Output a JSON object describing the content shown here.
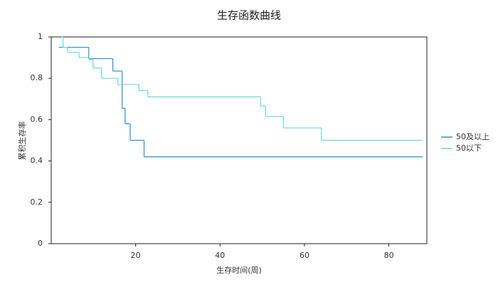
{
  "chart_data": {
    "type": "step",
    "title": "生存函数曲线",
    "xlabel": "生存时间(周)",
    "ylabel": "累积生存率",
    "xlim": [
      0,
      89
    ],
    "ylim": [
      0,
      1
    ],
    "xticks": [
      20,
      40,
      60,
      80
    ],
    "yticks": [
      0,
      0.2,
      0.4,
      0.6,
      0.8,
      1
    ],
    "legend": "right",
    "series": [
      {
        "name": "50及以上",
        "color": "#2a8fd0",
        "x": [
          1.8,
          8.9,
          14.6,
          16.8,
          17.5,
          18.7,
          22,
          88
        ],
        "values": [
          0.95,
          0.895,
          0.835,
          0.655,
          0.58,
          0.5,
          0.42,
          0.42
        ]
      },
      {
        "name": "50以下",
        "color": "#66dbd8",
        "x": [
          2.5,
          2.8,
          3.9,
          6.6,
          9,
          9.9,
          11.9,
          15.8,
          20.8,
          22.9,
          49.6,
          50.8,
          55,
          64,
          88
        ],
        "values": [
          1,
          0.95,
          0.925,
          0.9,
          0.89,
          0.85,
          0.8,
          0.77,
          0.74,
          0.71,
          0.665,
          0.615,
          0.56,
          0.5,
          0.5
        ]
      }
    ]
  }
}
